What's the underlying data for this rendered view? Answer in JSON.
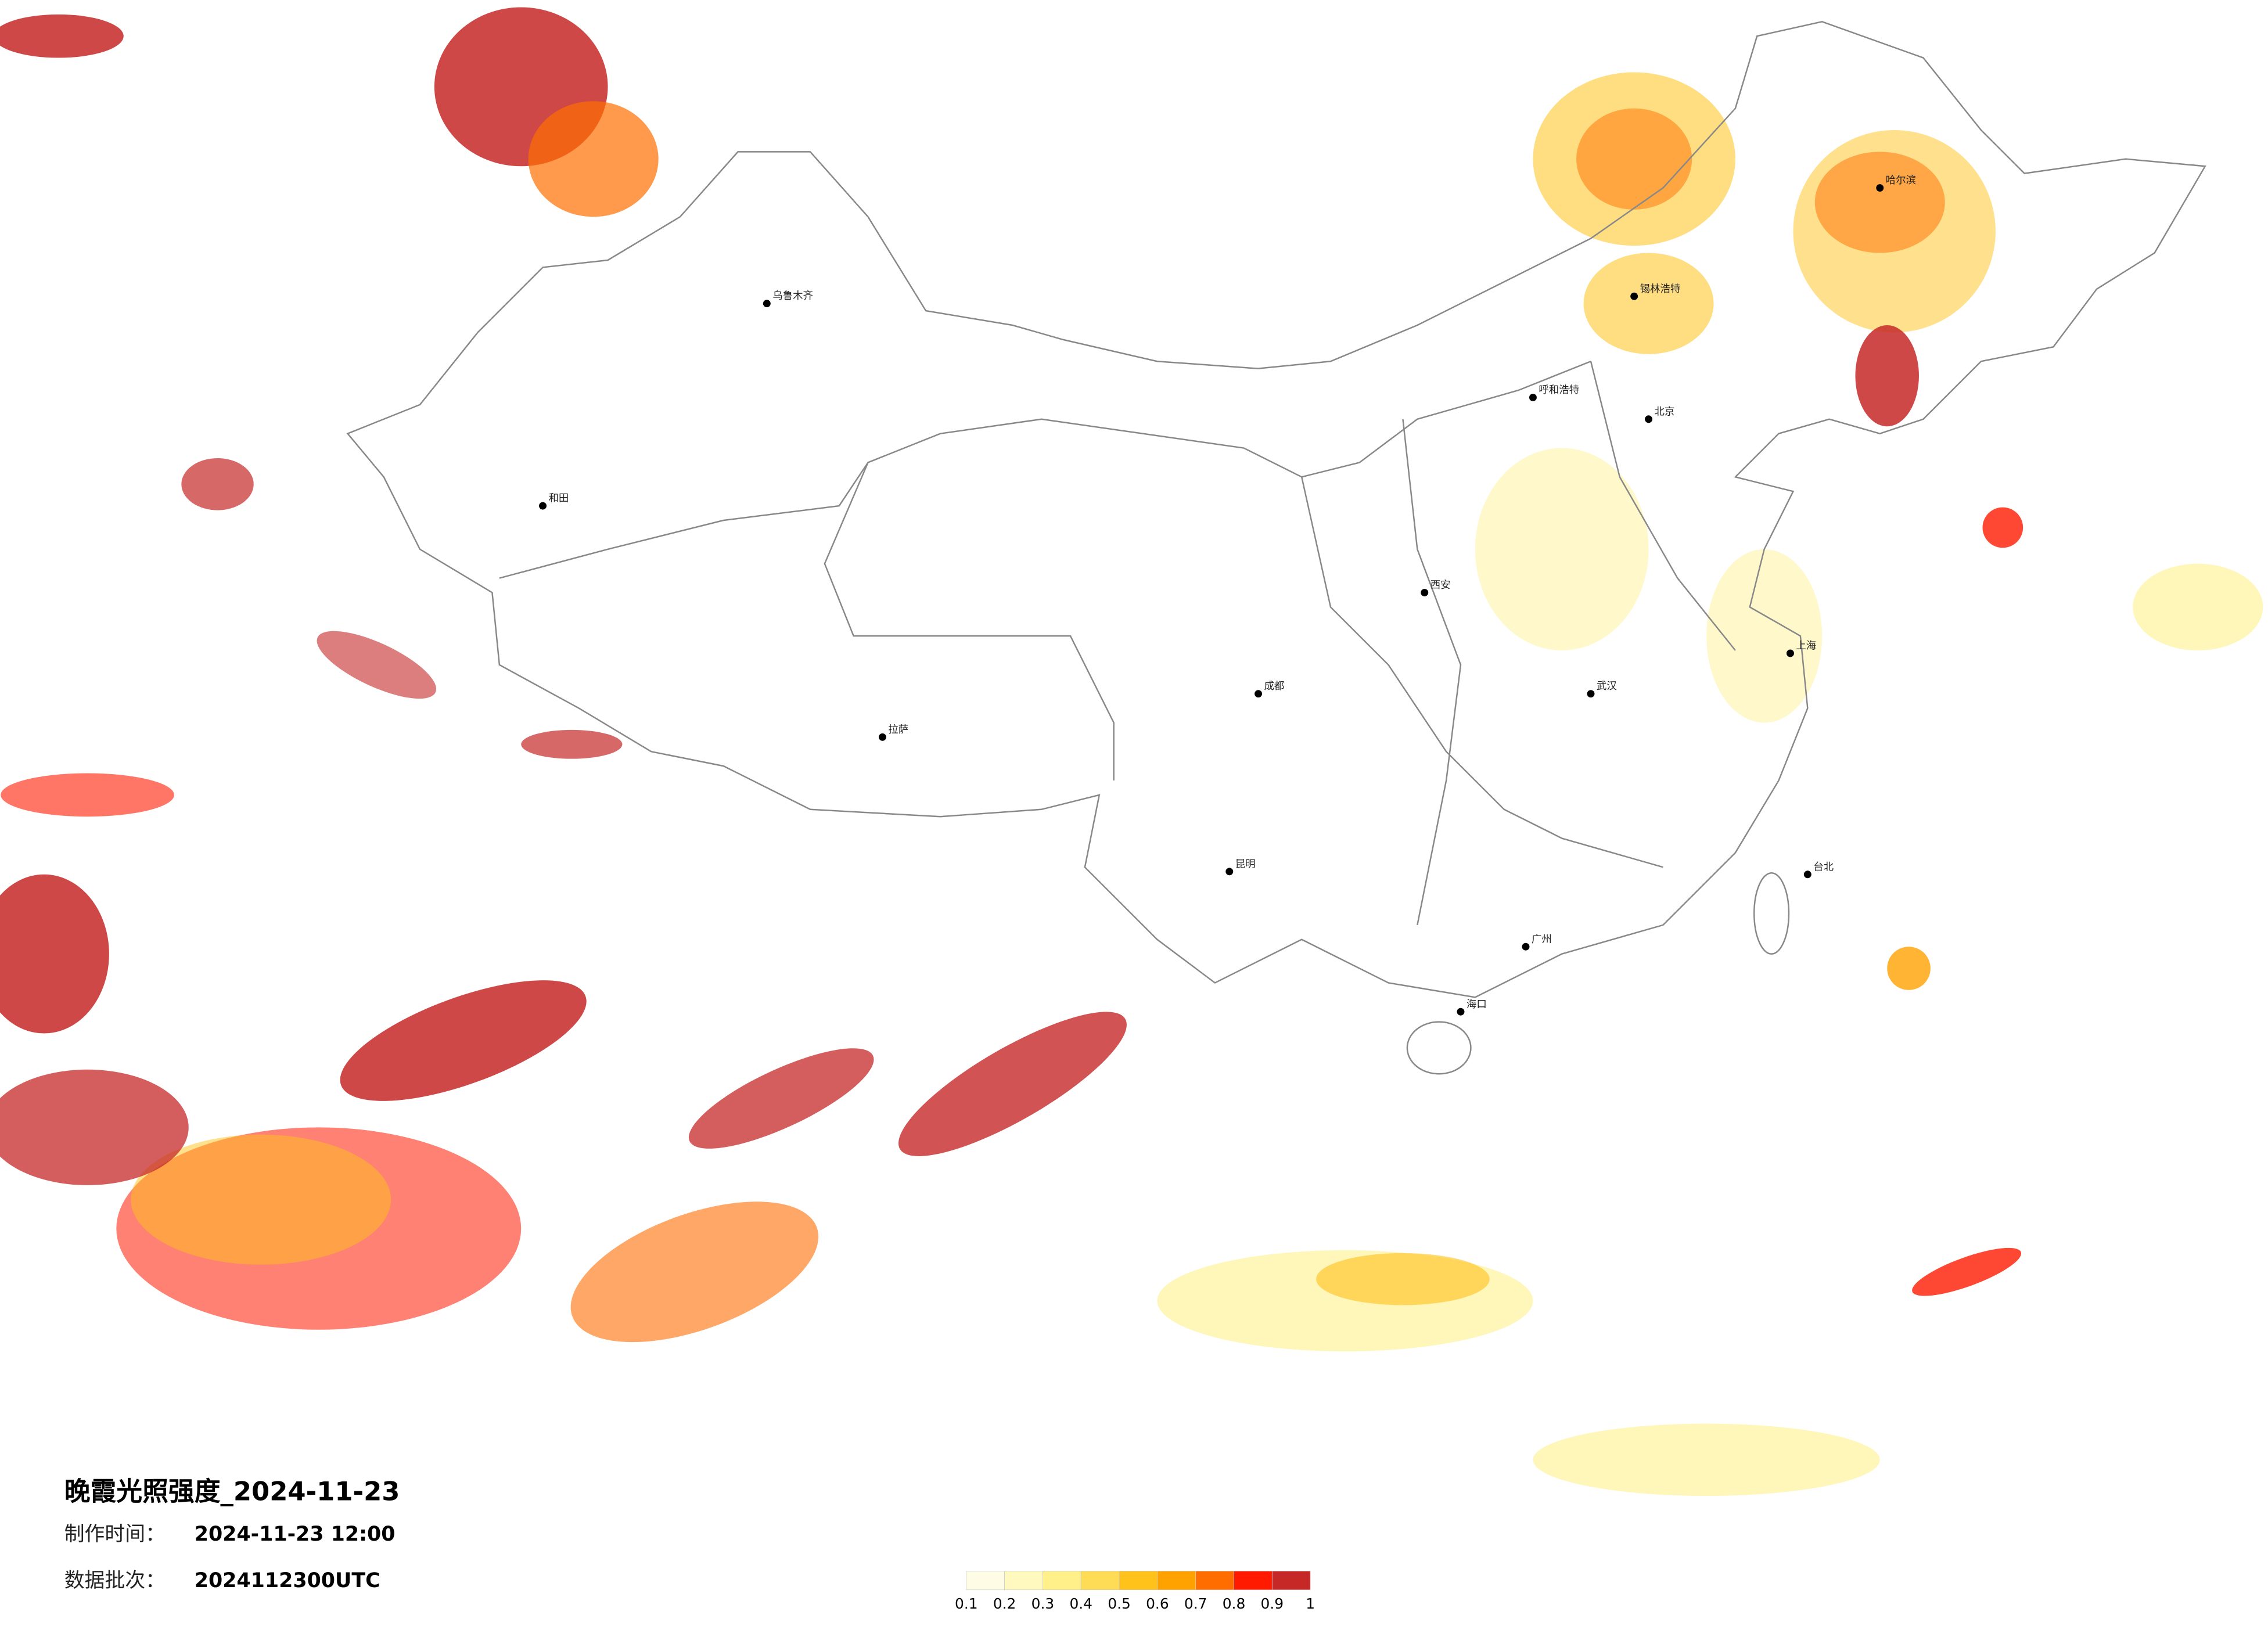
{
  "title": "晚霞光照强度_2024-11-23",
  "production_time": {
    "label": "制作时间：",
    "value": "2024-11-23 12:00"
  },
  "data_batch": {
    "label": "数据批次：",
    "value": "2024112300UTC"
  },
  "legend": {
    "colors": [
      "#fffce6",
      "#fff8bf",
      "#fff08a",
      "#ffdc55",
      "#ffc21a",
      "#ffa200",
      "#ff6d00",
      "#ff1a00",
      "#c62828"
    ],
    "ticks": [
      0.1,
      0.2,
      0.3,
      0.4,
      0.5,
      0.6,
      0.7,
      0.8,
      0.9,
      1
    ]
  },
  "cities": [
    {
      "name": "北京"
    },
    {
      "name": "上海"
    },
    {
      "name": "拉萨"
    },
    {
      "name": "哈尔滨"
    },
    {
      "name": "乌鲁木齐"
    },
    {
      "name": "台北"
    },
    {
      "name": "海口"
    },
    {
      "name": "昆明"
    },
    {
      "name": "成都"
    },
    {
      "name": "西安"
    },
    {
      "name": "武汉"
    },
    {
      "name": "广州"
    },
    {
      "name": "呼和浩特"
    },
    {
      "name": "和田"
    },
    {
      "name": "锡林浩特"
    }
  ]
}
